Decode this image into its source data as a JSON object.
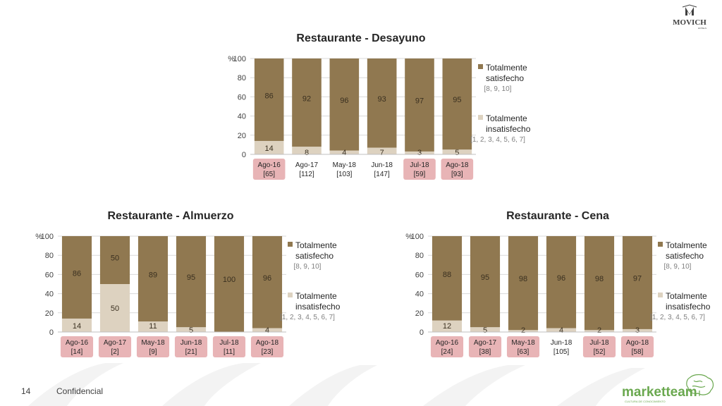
{
  "brand": {
    "movich_logo_text": "MOVICH",
    "movich_logo_sub": "HOTELS",
    "marketteam_logo_text": "marketteam",
    "marketteam_logo_sub": "CULTURA DE CONOCIMIENTO"
  },
  "footer": {
    "page_number": "14",
    "confidential": "Confidencial"
  },
  "colors": {
    "satisfied": "#907850",
    "unsatisfied": "#ddd2c0",
    "highlight": "#e8b4b6",
    "gridline": "#d9d9d9",
    "text": "#404040"
  },
  "chart_data": [
    {
      "id": "desayuno",
      "type": "bar",
      "stacked": true,
      "title": "Restaurante - Desayuno",
      "y_axis_title": "%",
      "ylim": [
        0,
        100
      ],
      "yticks": [
        "0",
        "20",
        "40",
        "60",
        "80",
        "100"
      ],
      "categories": [
        "Ago-16",
        "Ago-17",
        "May-18",
        "Jun-18",
        "Jul-18",
        "Ago-18"
      ],
      "sample_sizes": [
        "[65]",
        "[112]",
        "[103]",
        "[147]",
        "[59]",
        "[93]"
      ],
      "highlighted": [
        true,
        false,
        false,
        false,
        true,
        true
      ],
      "series": [
        {
          "name": "Totalmente insatisfecho",
          "range": "[1, 2, 3, 4, 5, 6, 7]",
          "color": "#ddd2c0",
          "values": [
            14,
            8,
            4,
            7,
            3,
            5
          ],
          "labels": [
            "14",
            "8",
            "4",
            "7",
            "3",
            "5"
          ]
        },
        {
          "name": "Totalmente satisfecho",
          "range": "[8, 9, 10]",
          "color": "#907850",
          "values": [
            86,
            92,
            96,
            93,
            97,
            95
          ],
          "labels": [
            "86",
            "92",
            "96",
            "93",
            "97",
            "95"
          ]
        }
      ],
      "legend": [
        {
          "line1": "Totalmente",
          "line2": "satisfecho",
          "range": "[8, 9, 10]",
          "color": "#907850"
        },
        {
          "line1": "Totalmente",
          "line2": "insatisfecho",
          "range": "[1, 2, 3, 4, 5, 6, 7]",
          "color": "#ddd2c0"
        }
      ]
    },
    {
      "id": "almuerzo",
      "type": "bar",
      "stacked": true,
      "title": "Restaurante - Almuerzo",
      "y_axis_title": "%",
      "ylim": [
        0,
        100
      ],
      "yticks": [
        "0",
        "20",
        "40",
        "60",
        "80",
        "100"
      ],
      "categories": [
        "Ago-16",
        "Ago-17",
        "May-18",
        "Jun-18",
        "Jul-18",
        "Ago-18"
      ],
      "sample_sizes": [
        "[14]",
        "[2]",
        "[9]",
        "[21]",
        "[11]",
        "[23]"
      ],
      "highlighted": [
        true,
        true,
        true,
        true,
        true,
        true
      ],
      "series": [
        {
          "name": "Totalmente insatisfecho",
          "range": "[1, 2, 3, 4, 5, 6, 7]",
          "color": "#ddd2c0",
          "values": [
            14,
            50,
            11,
            5,
            0,
            4
          ],
          "labels": [
            "14",
            "50",
            "11",
            "5",
            "",
            "4"
          ]
        },
        {
          "name": "Totalmente satisfecho",
          "range": "[8, 9, 10]",
          "color": "#907850",
          "values": [
            86,
            50,
            89,
            95,
            100,
            96
          ],
          "labels": [
            "86",
            "50",
            "89",
            "95",
            "100",
            "96"
          ]
        }
      ],
      "legend": [
        {
          "line1": "Totalmente",
          "line2": "satisfecho",
          "range": "[8, 9, 10]",
          "color": "#907850"
        },
        {
          "line1": "Totalmente",
          "line2": "insatisfecho",
          "range": "[1, 2, 3, 4, 5, 6, 7]",
          "color": "#ddd2c0"
        }
      ]
    },
    {
      "id": "cena",
      "type": "bar",
      "stacked": true,
      "title": "Restaurante - Cena",
      "y_axis_title": "%",
      "ylim": [
        0,
        100
      ],
      "yticks": [
        "0",
        "20",
        "40",
        "60",
        "80",
        "100"
      ],
      "categories": [
        "Ago-16",
        "Ago-17",
        "May-18",
        "Jun-18",
        "Jul-18",
        "Ago-18"
      ],
      "sample_sizes": [
        "[24]",
        "[38]",
        "[63]",
        "[105]",
        "[52]",
        "[58]"
      ],
      "highlighted": [
        true,
        true,
        true,
        false,
        true,
        true
      ],
      "series": [
        {
          "name": "Totalmente insatisfecho",
          "range": "[1, 2, 3, 4, 5, 6, 7]",
          "color": "#ddd2c0",
          "values": [
            12,
            5,
            2,
            4,
            2,
            3
          ],
          "labels": [
            "12",
            "5",
            "2",
            "4",
            "2",
            "3"
          ]
        },
        {
          "name": "Totalmente satisfecho",
          "range": "[8, 9, 10]",
          "color": "#907850",
          "values": [
            88,
            95,
            98,
            96,
            98,
            97
          ],
          "labels": [
            "88",
            "95",
            "98",
            "96",
            "98",
            "97"
          ]
        }
      ],
      "legend": [
        {
          "line1": "Totalmente",
          "line2": "satisfecho",
          "range": "[8, 9, 10]",
          "color": "#907850"
        },
        {
          "line1": "Totalmente",
          "line2": "insatisfecho",
          "range": "[1, 2, 3, 4, 5, 6, 7]",
          "color": "#ddd2c0"
        }
      ]
    }
  ]
}
